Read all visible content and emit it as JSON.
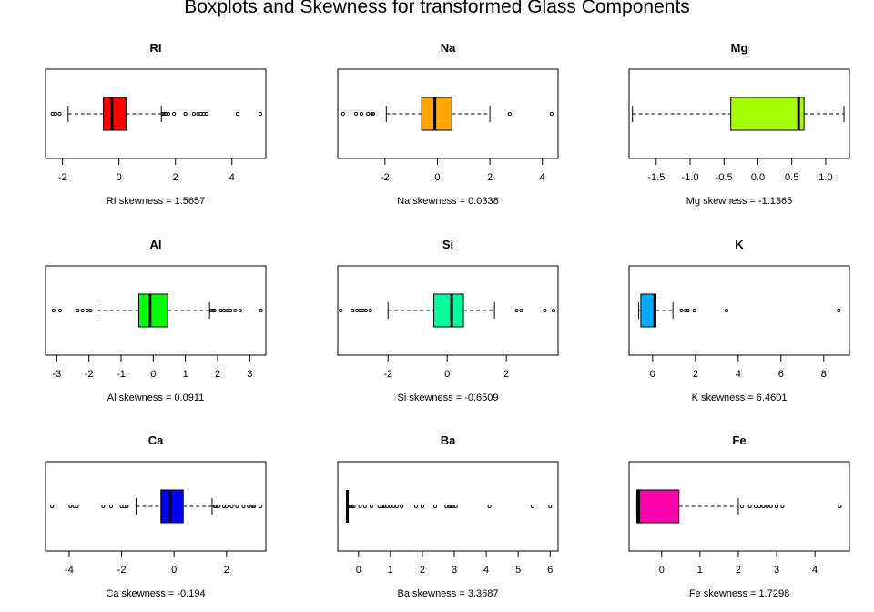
{
  "title": "Boxplots and Skewness for transformed Glass Components",
  "chart_data": [
    {
      "type": "boxplot",
      "title": "RI",
      "xlim": [
        -2.6,
        5.2
      ],
      "ticks": [
        -2,
        0,
        2,
        4
      ],
      "whisker_low": -1.8,
      "q1": -0.55,
      "median": -0.25,
      "q3": 0.25,
      "whisker_high": 1.5,
      "outliers": [
        -2.35,
        -2.25,
        -2.1,
        1.55,
        1.6,
        1.65,
        1.75,
        1.95,
        2.35,
        2.65,
        2.8,
        2.9,
        3.0,
        3.1,
        4.2,
        5.0
      ],
      "color": "#ff0000",
      "xlabel": "RI  skewness =  1.5657"
    },
    {
      "type": "boxplot",
      "title": "Na",
      "xlim": [
        -3.8,
        4.6
      ],
      "ticks": [
        -2,
        0,
        2,
        4
      ],
      "whisker_low": -1.95,
      "q1": -0.6,
      "median": -0.1,
      "q3": 0.55,
      "whisker_high": 2.0,
      "outliers": [
        -3.6,
        -3.1,
        -2.9,
        -2.65,
        -2.5,
        -2.45,
        2.75,
        4.35
      ],
      "color": "#ffa500",
      "xlabel": "Na  skewness =  0.0338"
    },
    {
      "type": "boxplot",
      "title": "Mg",
      "xlim": [
        -1.9,
        1.35
      ],
      "ticks": [
        -1.5,
        -1.0,
        -0.5,
        0.0,
        0.5,
        1.0
      ],
      "tick_labels": [
        "-1.5",
        "-1.0",
        "-0.5",
        "0.0",
        "0.5",
        "1.0"
      ],
      "whisker_low": -1.85,
      "q1": -0.4,
      "median": 0.6,
      "q3": 0.68,
      "whisker_high": 1.27,
      "outliers": [],
      "color": "#a6ff00",
      "xlabel": "Mg  skewness =  -1.1365"
    },
    {
      "type": "boxplot",
      "title": "Al",
      "xlim": [
        -3.35,
        3.5
      ],
      "ticks": [
        -3,
        -2,
        -1,
        0,
        1,
        2,
        3
      ],
      "whisker_low": -1.75,
      "q1": -0.45,
      "median": -0.1,
      "q3": 0.45,
      "whisker_high": 1.75,
      "outliers": [
        -3.1,
        -2.9,
        -2.35,
        -2.2,
        -2.05,
        -1.95,
        1.8,
        1.85,
        1.9,
        2.1,
        2.2,
        2.3,
        2.4,
        2.55,
        2.7,
        3.35
      ],
      "color": "#00ff00",
      "xlabel": "Al  skewness =  0.0911"
    },
    {
      "type": "boxplot",
      "title": "Si",
      "xlim": [
        -3.7,
        3.75
      ],
      "ticks": [
        -2,
        0,
        2
      ],
      "whisker_low": -2.0,
      "q1": -0.45,
      "median": 0.15,
      "q3": 0.55,
      "whisker_high": 1.6,
      "outliers": [
        -3.6,
        -3.2,
        -3.05,
        -2.95,
        -2.85,
        -2.75,
        -2.6,
        2.35,
        2.5,
        3.3,
        3.6
      ],
      "color": "#00ff9f",
      "xlabel": "Si  skewness =  -0.6509"
    },
    {
      "type": "boxplot",
      "title": "K",
      "xlim": [
        -1.1,
        9.2
      ],
      "ticks": [
        0,
        2,
        4,
        6,
        8
      ],
      "whisker_low": -0.65,
      "q1": -0.55,
      "median": 0.1,
      "q3": 0.15,
      "whisker_high": 0.95,
      "outliers": [
        1.35,
        1.55,
        1.65,
        1.95,
        3.45,
        8.7
      ],
      "color": "#00aaff",
      "xlabel": "K  skewness =  6.4601"
    },
    {
      "type": "boxplot",
      "title": "Ca",
      "xlim": [
        -4.9,
        3.5
      ],
      "ticks": [
        -4,
        -2,
        0,
        2
      ],
      "whisker_low": -1.45,
      "q1": -0.5,
      "median": -0.15,
      "q3": 0.35,
      "whisker_high": 1.45,
      "outliers": [
        -4.65,
        -3.95,
        -3.8,
        -3.7,
        -2.7,
        -2.4,
        -2.0,
        -1.9,
        -1.8,
        1.55,
        1.6,
        1.7,
        1.9,
        2.0,
        2.2,
        2.4,
        2.65,
        2.85,
        3.0,
        3.05,
        3.3
      ],
      "color": "#0000ff",
      "xlabel": "Ca  skewness =  -0.194"
    },
    {
      "type": "boxplot",
      "title": "Ba",
      "xlim": [
        -0.65,
        6.25
      ],
      "ticks": [
        0,
        1,
        2,
        3,
        4,
        5,
        6
      ],
      "whisker_low": -0.35,
      "q1": -0.35,
      "median": -0.35,
      "q3": -0.35,
      "whisker_high": -0.35,
      "outliers": [
        -0.3,
        -0.25,
        -0.2,
        -0.15,
        0.05,
        0.2,
        0.4,
        0.65,
        0.75,
        0.8,
        0.9,
        1.0,
        1.1,
        1.2,
        1.35,
        1.8,
        2.0,
        2.4,
        2.75,
        2.85,
        2.9,
        2.95,
        3.05,
        4.1,
        5.45,
        6.0
      ],
      "color": "#000000",
      "xlabel": "Ba  skewness =  3.3687"
    },
    {
      "type": "boxplot",
      "title": "Fe",
      "xlim": [
        -0.85,
        4.9
      ],
      "ticks": [
        0,
        1,
        2,
        3,
        4
      ],
      "whisker_low": -0.65,
      "q1": -0.65,
      "median": -0.6,
      "q3": 0.45,
      "whisker_high": 2.0,
      "outliers": [
        2.1,
        2.3,
        2.45,
        2.55,
        2.65,
        2.75,
        2.85,
        3.0,
        3.15,
        4.65
      ],
      "color": "#ff00aa",
      "xlabel": "Fe  skewness =  1.7298"
    }
  ]
}
